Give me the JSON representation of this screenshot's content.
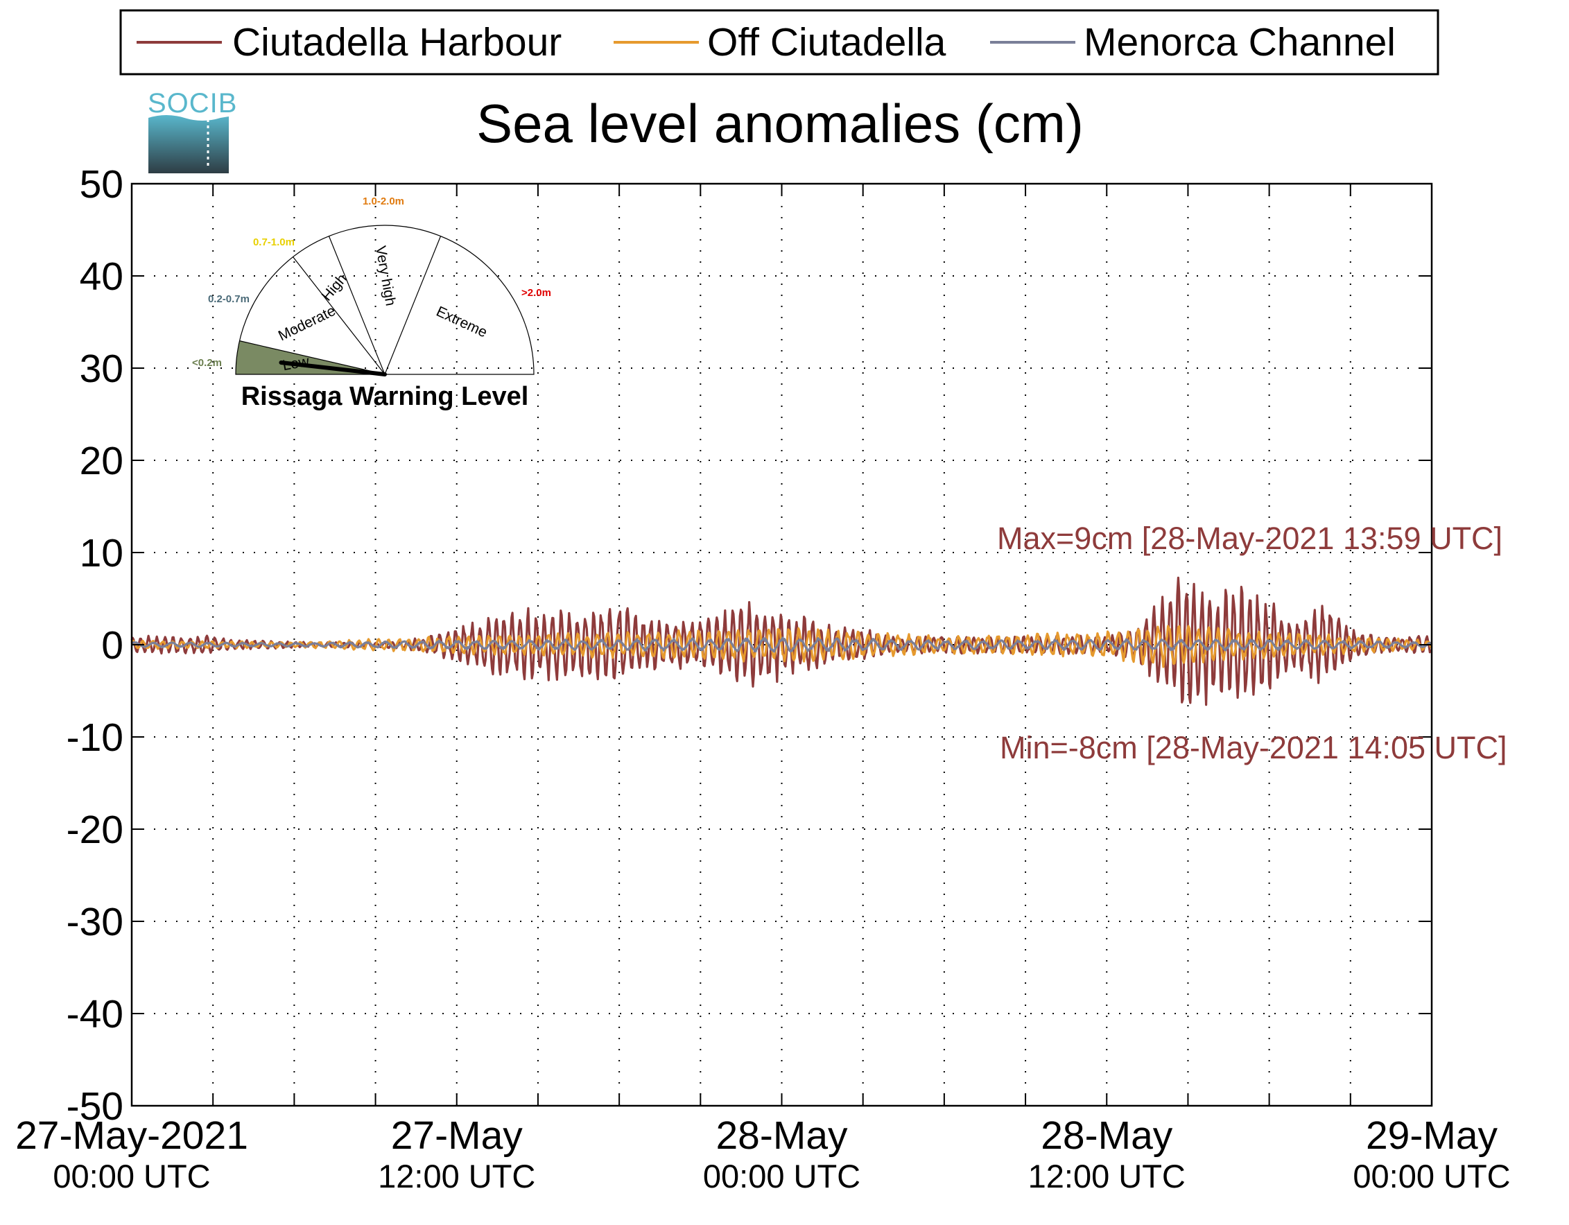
{
  "chart_data": {
    "type": "line",
    "title": "Sea level anomalies (cm)",
    "ylabel": "",
    "xlabel": "",
    "xlim": [
      "2021-05-27 00:00",
      "2021-05-29 00:00"
    ],
    "ylim": [
      -50,
      50
    ],
    "y_ticks": [
      50,
      40,
      30,
      20,
      10,
      0,
      -10,
      -20,
      -30,
      -40,
      -50
    ],
    "x_ticks": [
      {
        "x": "2021-05-27 00:00",
        "line1": "27-May-2021",
        "line2": "00:00 UTC"
      },
      {
        "x": "2021-05-27 12:00",
        "line1": "27-May",
        "line2": "12:00 UTC"
      },
      {
        "x": "2021-05-28 00:00",
        "line1": "28-May",
        "line2": "00:00 UTC"
      },
      {
        "x": "2021-05-28 12:00",
        "line1": "28-May",
        "line2": "12:00 UTC"
      },
      {
        "x": "2021-05-29 00:00",
        "line1": "29-May",
        "line2": "00:00 UTC"
      }
    ],
    "grid": true,
    "legend_position": "top",
    "series": [
      {
        "name": "Ciutadella Harbour",
        "color": "#8e3b3b",
        "x": [
          "2021-05-27 00:00",
          "2021-05-27 01:00",
          "2021-05-27 02:00",
          "2021-05-27 03:00",
          "2021-05-27 04:00",
          "2021-05-27 05:00",
          "2021-05-27 06:00",
          "2021-05-27 07:00",
          "2021-05-27 08:00",
          "2021-05-27 09:00",
          "2021-05-27 10:00",
          "2021-05-27 11:00",
          "2021-05-27 12:00",
          "2021-05-27 13:00",
          "2021-05-27 14:00",
          "2021-05-27 15:00",
          "2021-05-27 16:00",
          "2021-05-27 17:00",
          "2021-05-27 18:00",
          "2021-05-27 19:00",
          "2021-05-27 20:00",
          "2021-05-27 21:00",
          "2021-05-27 22:00",
          "2021-05-27 23:00",
          "2021-05-28 00:00",
          "2021-05-28 01:00",
          "2021-05-28 02:00",
          "2021-05-28 03:00",
          "2021-05-28 04:00",
          "2021-05-28 05:00",
          "2021-05-28 06:00",
          "2021-05-28 07:00",
          "2021-05-28 08:00",
          "2021-05-28 09:00",
          "2021-05-28 10:00",
          "2021-05-28 11:00",
          "2021-05-28 12:00",
          "2021-05-28 13:00",
          "2021-05-28 14:00",
          "2021-05-28 15:00",
          "2021-05-28 16:00",
          "2021-05-28 17:00",
          "2021-05-28 18:00",
          "2021-05-28 19:00",
          "2021-05-28 20:00",
          "2021-05-28 21:00",
          "2021-05-28 22:00",
          "2021-05-28 23:00",
          "2021-05-29 00:00"
        ],
        "y": [
          1,
          1,
          1,
          1,
          0.5,
          0.5,
          0.3,
          0.3,
          0.3,
          0.3,
          0.5,
          1,
          2,
          3,
          4,
          4,
          4,
          4,
          5,
          3,
          3,
          3,
          4,
          5,
          4,
          3,
          2,
          2,
          1,
          1,
          1,
          1,
          1,
          1,
          1,
          1,
          1,
          2,
          5,
          9,
          6,
          7,
          5,
          3,
          5,
          2,
          1,
          1,
          1
        ]
      },
      {
        "name": "Off Ciutadella",
        "color": "#e69a2e",
        "x": [
          "2021-05-27 00:00",
          "2021-05-27 06:00",
          "2021-05-27 12:00",
          "2021-05-27 18:00",
          "2021-05-28 00:00",
          "2021-05-28 06:00",
          "2021-05-28 12:00",
          "2021-05-28 14:00",
          "2021-05-28 18:00",
          "2021-05-29 00:00"
        ],
        "y": [
          0.5,
          0.3,
          1,
          1.5,
          2,
          1,
          1.5,
          2.5,
          1.5,
          0.5
        ]
      },
      {
        "name": "Menorca Channel",
        "color": "#7a7f98",
        "x": [
          "2021-05-27 00:00",
          "2021-05-27 06:00",
          "2021-05-27 12:00",
          "2021-05-27 18:00",
          "2021-05-28 00:00",
          "2021-05-28 06:00",
          "2021-05-28 12:00",
          "2021-05-28 18:00",
          "2021-05-29 00:00"
        ],
        "y": [
          0.3,
          0.2,
          0.5,
          0.6,
          0.8,
          0.5,
          0.6,
          0.6,
          0.3
        ]
      }
    ],
    "annotations": [
      {
        "text": "Max=9cm [28-May-2021 13:59 UTC]",
        "color": "#8e3b3b"
      },
      {
        "text": "Min=-8cm [28-May-2021 14:05 UTC]",
        "color": "#8e3b3b"
      }
    ]
  },
  "logo": {
    "text": "SOCIB"
  },
  "gauge": {
    "title": "Rissaga Warning Level",
    "value_m": 0.1,
    "sectors": [
      {
        "label": "Low",
        "range": "<0.2m",
        "range_color": "#6b7f4f"
      },
      {
        "label": "Moderate",
        "range": "0.2-0.7m",
        "range_color": "#4a6a78"
      },
      {
        "label": "High",
        "range": "0.7-1.0m",
        "range_color": "#e8d000"
      },
      {
        "label": "Very high",
        "range": "1.0-2.0m",
        "range_color": "#e07b10"
      },
      {
        "label": "Extreme",
        "range": ">2.0m",
        "range_color": "#e00000"
      }
    ],
    "low_fill_color": "#7a8a63"
  }
}
